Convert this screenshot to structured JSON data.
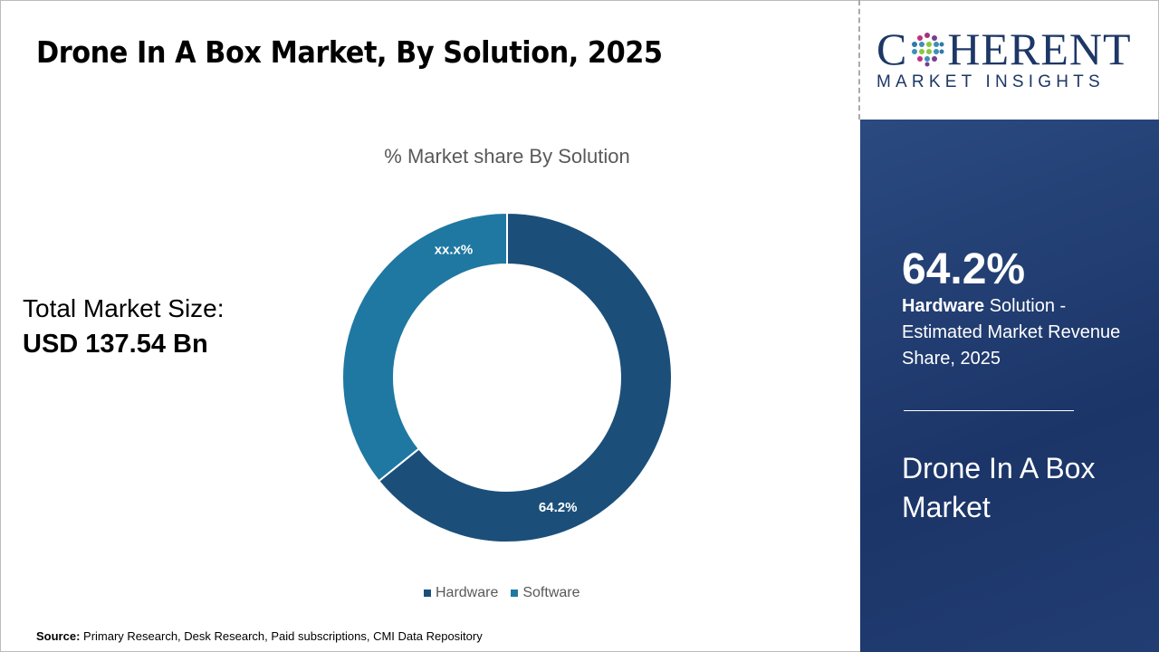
{
  "title": "Drone In A Box Market, By Solution, 2025",
  "total_market": {
    "label": "Total Market Size:",
    "value": "USD 137.54 Bn"
  },
  "source": {
    "label": "Source:",
    "text": " Primary Research, Desk Research, Paid subscriptions, CMI Data Repository"
  },
  "logo": {
    "main": "COHERENT",
    "sub": "MARKET INSIGHTS"
  },
  "panel": {
    "big": "64.2%",
    "bold": "Hardware",
    "desc": " Solution - Estimated Market Revenue Share, 2025",
    "market": "Drone In A Box Market"
  },
  "chart_data": {
    "type": "pie",
    "donut": true,
    "title": "% Market share By Solution",
    "categories": [
      "Hardware",
      "Software"
    ],
    "values": [
      64.2,
      35.8
    ],
    "labels": [
      "64.2%",
      "xx.x%"
    ],
    "colors": [
      "#1b4f7a",
      "#1f78a1"
    ],
    "legend": "bottom"
  }
}
